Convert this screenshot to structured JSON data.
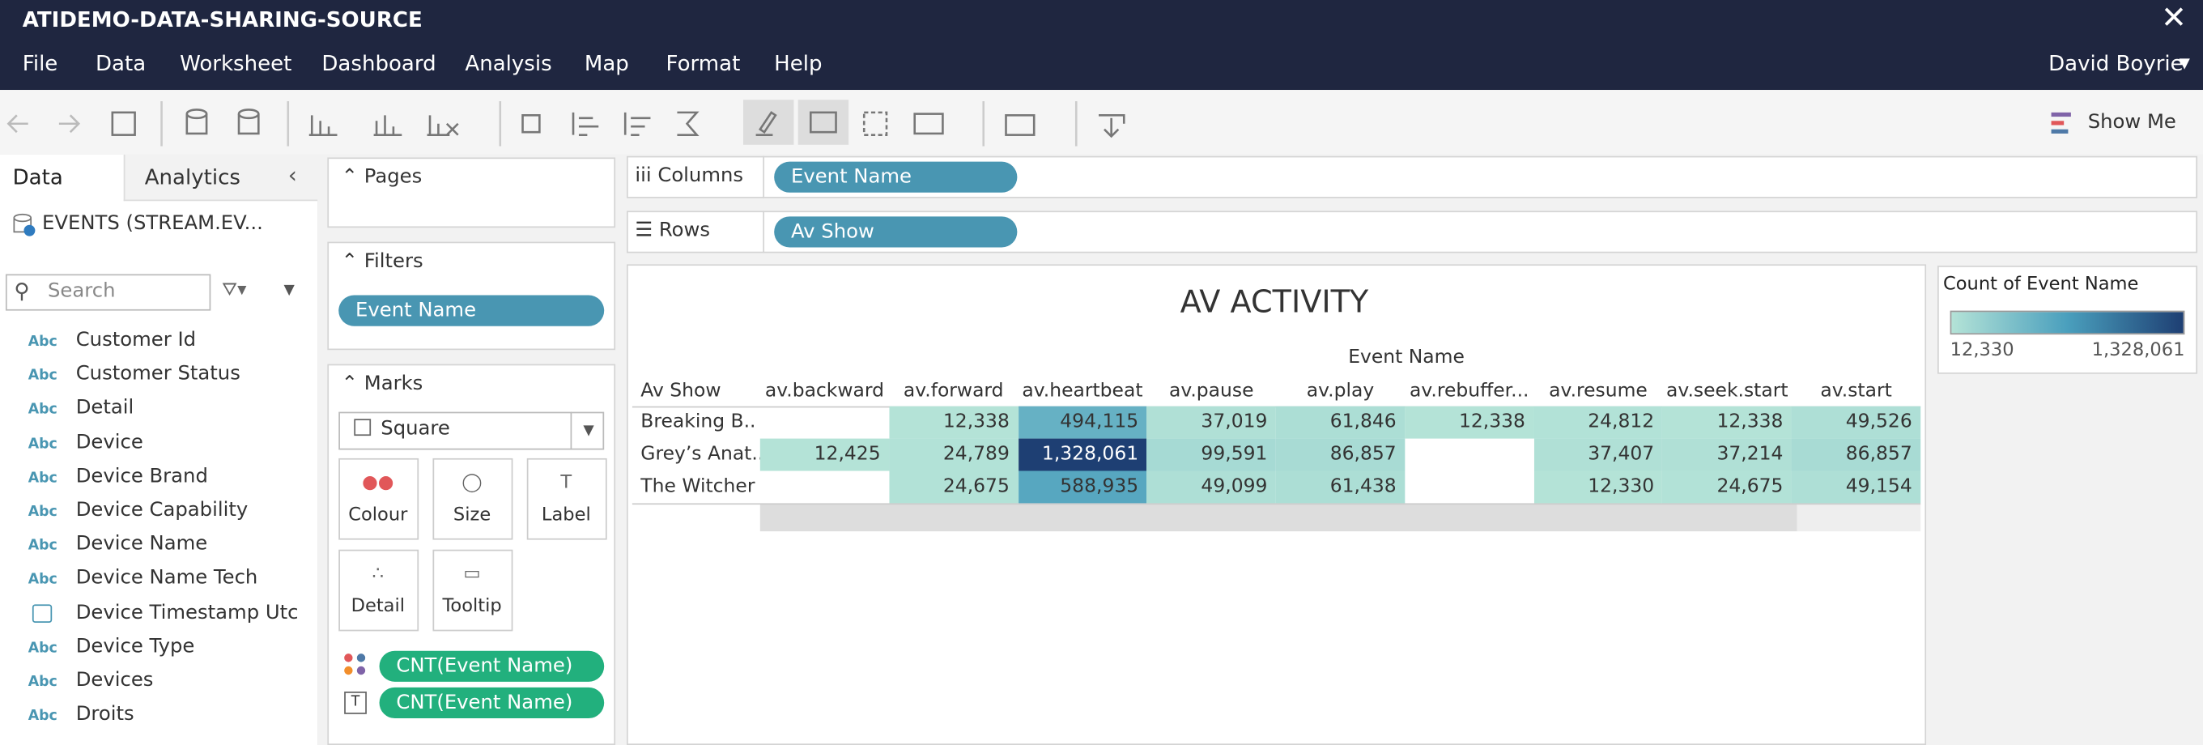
{
  "window": {
    "title": "ATIDEMO-DATA-SHARING-SOURCE",
    "user": "David Boyrie"
  },
  "menu": [
    "File",
    "Data",
    "Worksheet",
    "Dashboard",
    "Analysis",
    "Map",
    "Format",
    "Help"
  ],
  "toolbar": {
    "show_me": "Show Me"
  },
  "data_pane": {
    "tabs": [
      "Data",
      "Analytics"
    ],
    "source": "EVENTS (STREAM.EV...",
    "search_placeholder": "Search",
    "fields": [
      {
        "type": "Abc",
        "name": "Customer Id"
      },
      {
        "type": "Abc",
        "name": "Customer Status"
      },
      {
        "type": "Abc",
        "name": "Detail"
      },
      {
        "type": "Abc",
        "name": "Device"
      },
      {
        "type": "Abc",
        "name": "Device Brand"
      },
      {
        "type": "Abc",
        "name": "Device Capability"
      },
      {
        "type": "Abc",
        "name": "Device Name"
      },
      {
        "type": "Abc",
        "name": "Device Name Tech"
      },
      {
        "type": "date",
        "name": "Device Timestamp Utc"
      },
      {
        "type": "Abc",
        "name": "Device Type"
      },
      {
        "type": "Abc",
        "name": "Devices"
      },
      {
        "type": "Abc",
        "name": "Droits"
      }
    ]
  },
  "pages": {
    "title": "Pages"
  },
  "filters": {
    "title": "Filters",
    "items": [
      "Event Name"
    ]
  },
  "marks": {
    "title": "Marks",
    "type": "Square",
    "buttons": [
      "Colour",
      "Size",
      "Label",
      "Detail",
      "Tooltip"
    ],
    "pills": [
      "CNT(Event Name)",
      "CNT(Event Name)"
    ]
  },
  "shelves": {
    "columns": {
      "label": "Columns",
      "pill": "Event Name"
    },
    "rows": {
      "label": "Rows",
      "pill": "Av Show"
    }
  },
  "view": {
    "title": "AV ACTIVITY",
    "column_header": "Event Name",
    "row_header": "Av Show",
    "columns": [
      "av.backward",
      "av.forward",
      "av.heartbeat",
      "av.pause",
      "av.play",
      "av.rebuffer...",
      "av.resume",
      "av.seek.start",
      "av.start"
    ],
    "rows": [
      {
        "label": "Breaking B..",
        "cells": [
          null,
          "12,338",
          "494,115",
          "37,019",
          "61,846",
          "12,338",
          "24,812",
          "12,338",
          "49,526"
        ]
      },
      {
        "label": "Grey’s Anat..",
        "cells": [
          "12,425",
          "24,789",
          "1,328,061",
          "99,591",
          "86,857",
          null,
          "37,407",
          "37,214",
          "86,857"
        ]
      },
      {
        "label": "The Witcher",
        "cells": [
          null,
          "24,675",
          "588,935",
          "49,099",
          "61,438",
          null,
          "12,330",
          "24,675",
          "49,154"
        ]
      }
    ]
  },
  "legend": {
    "title": "Count of Event Name",
    "min": "12,330",
    "max": "1,328,061"
  }
}
